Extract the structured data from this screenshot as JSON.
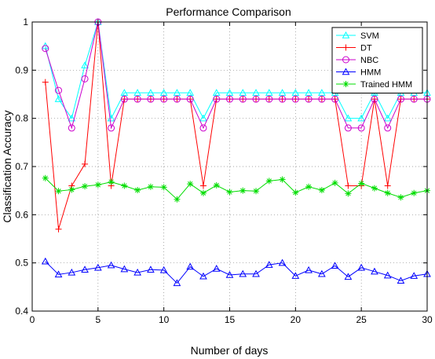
{
  "chart_data": {
    "type": "line",
    "title": "Performance Comparison",
    "xlabel": "Number of days",
    "ylabel": "Classification Accuracy",
    "xlim": [
      0,
      30
    ],
    "ylim": [
      0.4,
      1.0
    ],
    "xticks": [
      "0",
      "5",
      "10",
      "15",
      "20",
      "25",
      "30"
    ],
    "yticks": [
      "0.4",
      "0.5",
      "0.6",
      "0.7",
      "0.8",
      "0.9",
      "1"
    ],
    "grid": true,
    "legend_position": "top-right",
    "x": [
      1,
      2,
      3,
      4,
      5,
      6,
      7,
      8,
      9,
      10,
      11,
      12,
      13,
      14,
      15,
      16,
      17,
      18,
      19,
      20,
      21,
      22,
      23,
      24,
      25,
      26,
      27,
      28,
      29,
      30
    ],
    "series": [
      {
        "name": "SVM",
        "color": "#00ffff",
        "marker": "triangle",
        "values": [
          0.95,
          0.84,
          0.8,
          0.91,
          1.0,
          0.8,
          0.853,
          0.853,
          0.853,
          0.853,
          0.853,
          0.853,
          0.8,
          0.853,
          0.853,
          0.853,
          0.853,
          0.853,
          0.853,
          0.853,
          0.853,
          0.853,
          0.853,
          0.8,
          0.8,
          0.853,
          0.8,
          0.853,
          0.853,
          0.853
        ]
      },
      {
        "name": "DT",
        "color": "#ff0000",
        "marker": "plus",
        "values": [
          0.875,
          0.57,
          0.66,
          0.705,
          1.0,
          0.66,
          0.84,
          0.84,
          0.84,
          0.84,
          0.84,
          0.84,
          0.66,
          0.84,
          0.84,
          0.84,
          0.84,
          0.84,
          0.84,
          0.84,
          0.84,
          0.84,
          0.84,
          0.66,
          0.66,
          0.84,
          0.66,
          0.84,
          0.84,
          0.84
        ]
      },
      {
        "name": "NBC",
        "color": "#cc00cc",
        "marker": "circle",
        "values": [
          0.945,
          0.858,
          0.78,
          0.882,
          1.0,
          0.78,
          0.84,
          0.84,
          0.84,
          0.84,
          0.84,
          0.84,
          0.78,
          0.84,
          0.84,
          0.84,
          0.84,
          0.84,
          0.84,
          0.84,
          0.84,
          0.84,
          0.84,
          0.78,
          0.78,
          0.84,
          0.78,
          0.84,
          0.84,
          0.84
        ]
      },
      {
        "name": "HMM",
        "color": "#0000ff",
        "marker": "triangle",
        "values": [
          0.503,
          0.476,
          0.48,
          0.486,
          0.49,
          0.495,
          0.487,
          0.48,
          0.486,
          0.485,
          0.458,
          0.492,
          0.472,
          0.488,
          0.475,
          0.477,
          0.477,
          0.496,
          0.5,
          0.473,
          0.485,
          0.477,
          0.494,
          0.471,
          0.49,
          0.482,
          0.474,
          0.463,
          0.473,
          0.477
        ]
      },
      {
        "name": "Trained HMM",
        "color": "#00dd00",
        "marker": "star",
        "values": [
          0.676,
          0.649,
          0.652,
          0.659,
          0.662,
          0.668,
          0.66,
          0.651,
          0.658,
          0.657,
          0.632,
          0.664,
          0.645,
          0.661,
          0.647,
          0.65,
          0.649,
          0.67,
          0.673,
          0.646,
          0.658,
          0.651,
          0.666,
          0.644,
          0.665,
          0.655,
          0.645,
          0.636,
          0.645,
          0.65
        ]
      }
    ]
  }
}
